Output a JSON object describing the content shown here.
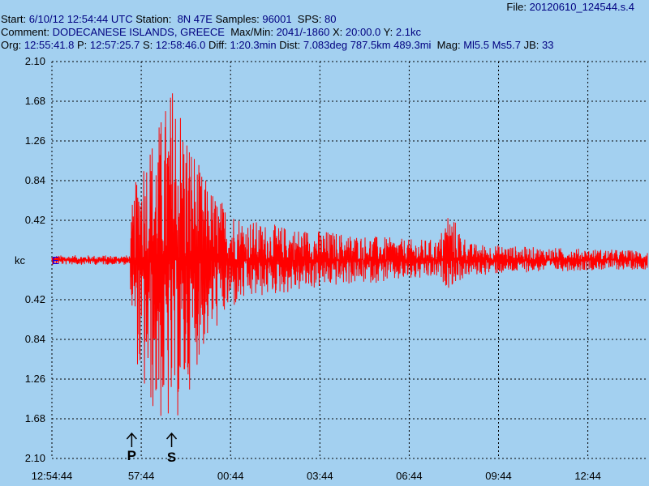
{
  "header": {
    "file_label": "File:",
    "file_value": "20120610_124544.s.4",
    "start_label": "Start:",
    "start_value": "6/10/12 12:54:44 UTC",
    "station_label": "Station:",
    "station_value": "8N 47E",
    "samples_label": "Samples:",
    "samples_value": "96001",
    "sps_label": "SPS:",
    "sps_value": "80",
    "comment_label": "Comment:",
    "comment_value": "DODECANESE ISLANDS, GREECE",
    "maxmin_label": "Max/Min:",
    "maxmin_value": "2041/-1860",
    "x_label": "X:",
    "x_value": "20:00.0",
    "y_label": "Y:",
    "y_value": "2.1kc",
    "org_label": "Org:",
    "org_value": "12:55:41.8",
    "p_label": "P:",
    "p_value": "12:57:25.7",
    "s_label": "S:",
    "s_value": "12:58:46.0",
    "diff_label": "Diff:",
    "diff_value": "1:20.3min",
    "dist_label": "Dist:",
    "dist_value": "7.083deg 787.5km 489.3mi",
    "mag_label": "Mag:",
    "mag_value": "Ml5.5 Ms5.7",
    "jb_label": "JB:",
    "jb_value": "33"
  },
  "axis": {
    "unit": "kc",
    "channel": "E"
  },
  "markers": {
    "p_label": "P",
    "s_label": "S"
  },
  "colors": {
    "background": "#a3d0f0",
    "trace": "#ff0000",
    "grid": "#000000",
    "header_value": "#000080"
  },
  "chart_data": {
    "type": "line",
    "title": "",
    "xlabel": "",
    "ylabel": "kc",
    "y_tick_labels": [
      "2.10",
      "1.68",
      "1.26",
      "0.84",
      "0.42",
      "0.42",
      "0.84",
      "1.26",
      "1.68",
      "2.10"
    ],
    "y_tick_values": [
      2.1,
      1.68,
      1.26,
      0.84,
      0.42,
      -0.42,
      -0.84,
      -1.26,
      -1.68,
      -2.1
    ],
    "ylim": [
      -2.1,
      2.1
    ],
    "x_tick_labels": [
      "12:54:44",
      "57:44",
      "00:44",
      "03:44",
      "06:44",
      "09:44",
      "12:44"
    ],
    "x_tick_values_min": [
      0,
      3,
      6,
      9,
      12,
      15,
      18
    ],
    "xlim_min": [
      0,
      20
    ],
    "grid": true,
    "p_arrival_min": 2.68,
    "s_arrival_min": 4.02,
    "series": [
      {
        "channel": "E",
        "envelope_time_min": [
          0,
          2.6,
          2.7,
          3.0,
          3.5,
          4.0,
          4.1,
          4.5,
          5.0,
          5.5,
          6.0,
          6.5,
          7.0,
          8.0,
          9.0,
          10.0,
          12.0,
          13.0,
          13.3,
          14.0,
          16.0,
          18.0,
          20.0
        ],
        "envelope_max_kc": [
          0.05,
          0.05,
          0.6,
          1.2,
          1.4,
          1.85,
          2.04,
          1.5,
          0.95,
          0.7,
          0.55,
          0.45,
          0.4,
          0.35,
          0.32,
          0.28,
          0.22,
          0.22,
          0.55,
          0.18,
          0.14,
          0.12,
          0.1
        ],
        "envelope_min_kc": [
          -0.05,
          -0.05,
          -0.7,
          -1.45,
          -1.7,
          -1.86,
          -1.8,
          -1.5,
          -1.0,
          -0.75,
          -0.55,
          -0.45,
          -0.4,
          -0.35,
          -0.3,
          -0.26,
          -0.22,
          -0.2,
          -0.3,
          -0.17,
          -0.13,
          -0.11,
          -0.1
        ]
      }
    ]
  }
}
